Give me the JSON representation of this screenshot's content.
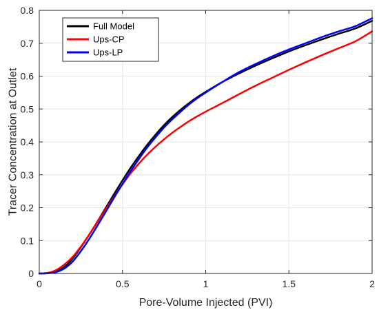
{
  "chart_data": {
    "type": "line",
    "title": "",
    "xlabel": "Pore-Volume Injected (PVI)",
    "ylabel": "Tracer Concentration at Outlet",
    "xlim": [
      0,
      2
    ],
    "ylim": [
      0,
      0.8
    ],
    "xticks": [
      "0",
      "0.5",
      "1",
      "1.5",
      "2"
    ],
    "yticks": [
      "0",
      "0.1",
      "0.2",
      "0.3",
      "0.4",
      "0.5",
      "0.6",
      "0.7",
      "0.8"
    ],
    "grid": true,
    "legend_position": "top-left",
    "x": [
      0,
      0.05,
      0.1,
      0.15,
      0.2,
      0.25,
      0.3,
      0.35,
      0.4,
      0.45,
      0.5,
      0.55,
      0.6,
      0.65,
      0.7,
      0.75,
      0.8,
      0.85,
      0.9,
      0.95,
      1.0,
      1.1,
      1.2,
      1.3,
      1.4,
      1.5,
      1.6,
      1.7,
      1.8,
      1.9,
      2.0
    ],
    "series": [
      {
        "name": "Full Model",
        "color": "#000000",
        "values": [
          0.0,
          0.001,
          0.006,
          0.02,
          0.045,
          0.08,
          0.118,
          0.158,
          0.2,
          0.242,
          0.283,
          0.322,
          0.358,
          0.392,
          0.423,
          0.451,
          0.476,
          0.498,
          0.518,
          0.536,
          0.552,
          0.582,
          0.608,
          0.632,
          0.654,
          0.675,
          0.694,
          0.712,
          0.729,
          0.745,
          0.768
        ]
      },
      {
        "name": "Ups-CP",
        "color": "#ff0000",
        "values": [
          0.0,
          0.002,
          0.01,
          0.027,
          0.05,
          0.082,
          0.118,
          0.157,
          0.196,
          0.234,
          0.271,
          0.305,
          0.335,
          0.362,
          0.386,
          0.408,
          0.428,
          0.446,
          0.463,
          0.478,
          0.492,
          0.518,
          0.545,
          0.571,
          0.595,
          0.619,
          0.642,
          0.664,
          0.685,
          0.706,
          0.736
        ]
      },
      {
        "name": "Ups-LP",
        "color": "#0000ff",
        "values": [
          0.0,
          0.0005,
          0.004,
          0.015,
          0.036,
          0.068,
          0.105,
          0.146,
          0.188,
          0.231,
          0.272,
          0.312,
          0.349,
          0.384,
          0.415,
          0.444,
          0.469,
          0.492,
          0.514,
          0.533,
          0.55,
          0.582,
          0.612,
          0.637,
          0.66,
          0.681,
          0.7,
          0.719,
          0.736,
          0.752,
          0.776
        ]
      }
    ]
  }
}
